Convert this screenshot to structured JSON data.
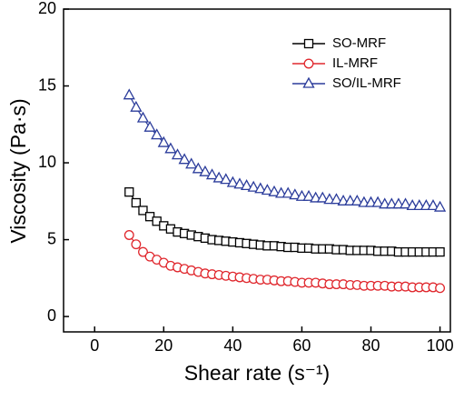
{
  "chart_data": {
    "type": "line",
    "xlabel": "Shear rate (s⁻¹)",
    "ylabel": "Viscosity (Pa·s)",
    "x": [
      10,
      12,
      14,
      16,
      18,
      20,
      22,
      24,
      26,
      28,
      30,
      32,
      34,
      36,
      38,
      40,
      42,
      44,
      46,
      48,
      50,
      52,
      54,
      56,
      58,
      60,
      62,
      64,
      66,
      68,
      70,
      72,
      74,
      76,
      78,
      80,
      82,
      84,
      86,
      88,
      90,
      92,
      94,
      96,
      98,
      100
    ],
    "series": [
      {
        "name": "SO-MRF",
        "color": "#000000",
        "marker": "square",
        "values": [
          8.1,
          7.4,
          6.9,
          6.5,
          6.2,
          5.9,
          5.7,
          5.5,
          5.4,
          5.3,
          5.2,
          5.1,
          5.0,
          4.95,
          4.9,
          4.85,
          4.8,
          4.75,
          4.7,
          4.65,
          4.6,
          4.6,
          4.55,
          4.5,
          4.5,
          4.45,
          4.45,
          4.4,
          4.4,
          4.4,
          4.35,
          4.35,
          4.3,
          4.3,
          4.3,
          4.3,
          4.25,
          4.25,
          4.25,
          4.2,
          4.2,
          4.2,
          4.2,
          4.2,
          4.2,
          4.2
        ]
      },
      {
        "name": "IL-MRF",
        "color": "#e0282e",
        "marker": "circle",
        "values": [
          5.3,
          4.7,
          4.2,
          3.9,
          3.7,
          3.5,
          3.3,
          3.2,
          3.1,
          3.0,
          2.9,
          2.8,
          2.75,
          2.7,
          2.65,
          2.6,
          2.55,
          2.5,
          2.45,
          2.4,
          2.4,
          2.35,
          2.3,
          2.3,
          2.25,
          2.2,
          2.2,
          2.2,
          2.15,
          2.1,
          2.1,
          2.1,
          2.05,
          2.05,
          2.0,
          2.0,
          2.0,
          2.0,
          1.95,
          1.95,
          1.95,
          1.9,
          1.9,
          1.9,
          1.9,
          1.85
        ]
      },
      {
        "name": "SO/IL-MRF",
        "color": "#2b3c9b",
        "marker": "triangle",
        "values": [
          14.4,
          13.6,
          12.9,
          12.3,
          11.8,
          11.3,
          10.9,
          10.5,
          10.2,
          9.9,
          9.6,
          9.4,
          9.2,
          9.0,
          8.9,
          8.7,
          8.6,
          8.5,
          8.4,
          8.3,
          8.2,
          8.1,
          8.0,
          8.0,
          7.9,
          7.8,
          7.8,
          7.7,
          7.7,
          7.6,
          7.6,
          7.5,
          7.5,
          7.5,
          7.4,
          7.4,
          7.4,
          7.3,
          7.3,
          7.3,
          7.3,
          7.2,
          7.2,
          7.2,
          7.2,
          7.1
        ]
      }
    ],
    "xlim": [
      -9,
      103
    ],
    "ylim": [
      -1,
      20
    ],
    "xticks": [
      0,
      20,
      40,
      60,
      80,
      100
    ],
    "yticks": [
      0,
      5,
      10,
      15,
      20
    ],
    "legend": "upper right"
  }
}
